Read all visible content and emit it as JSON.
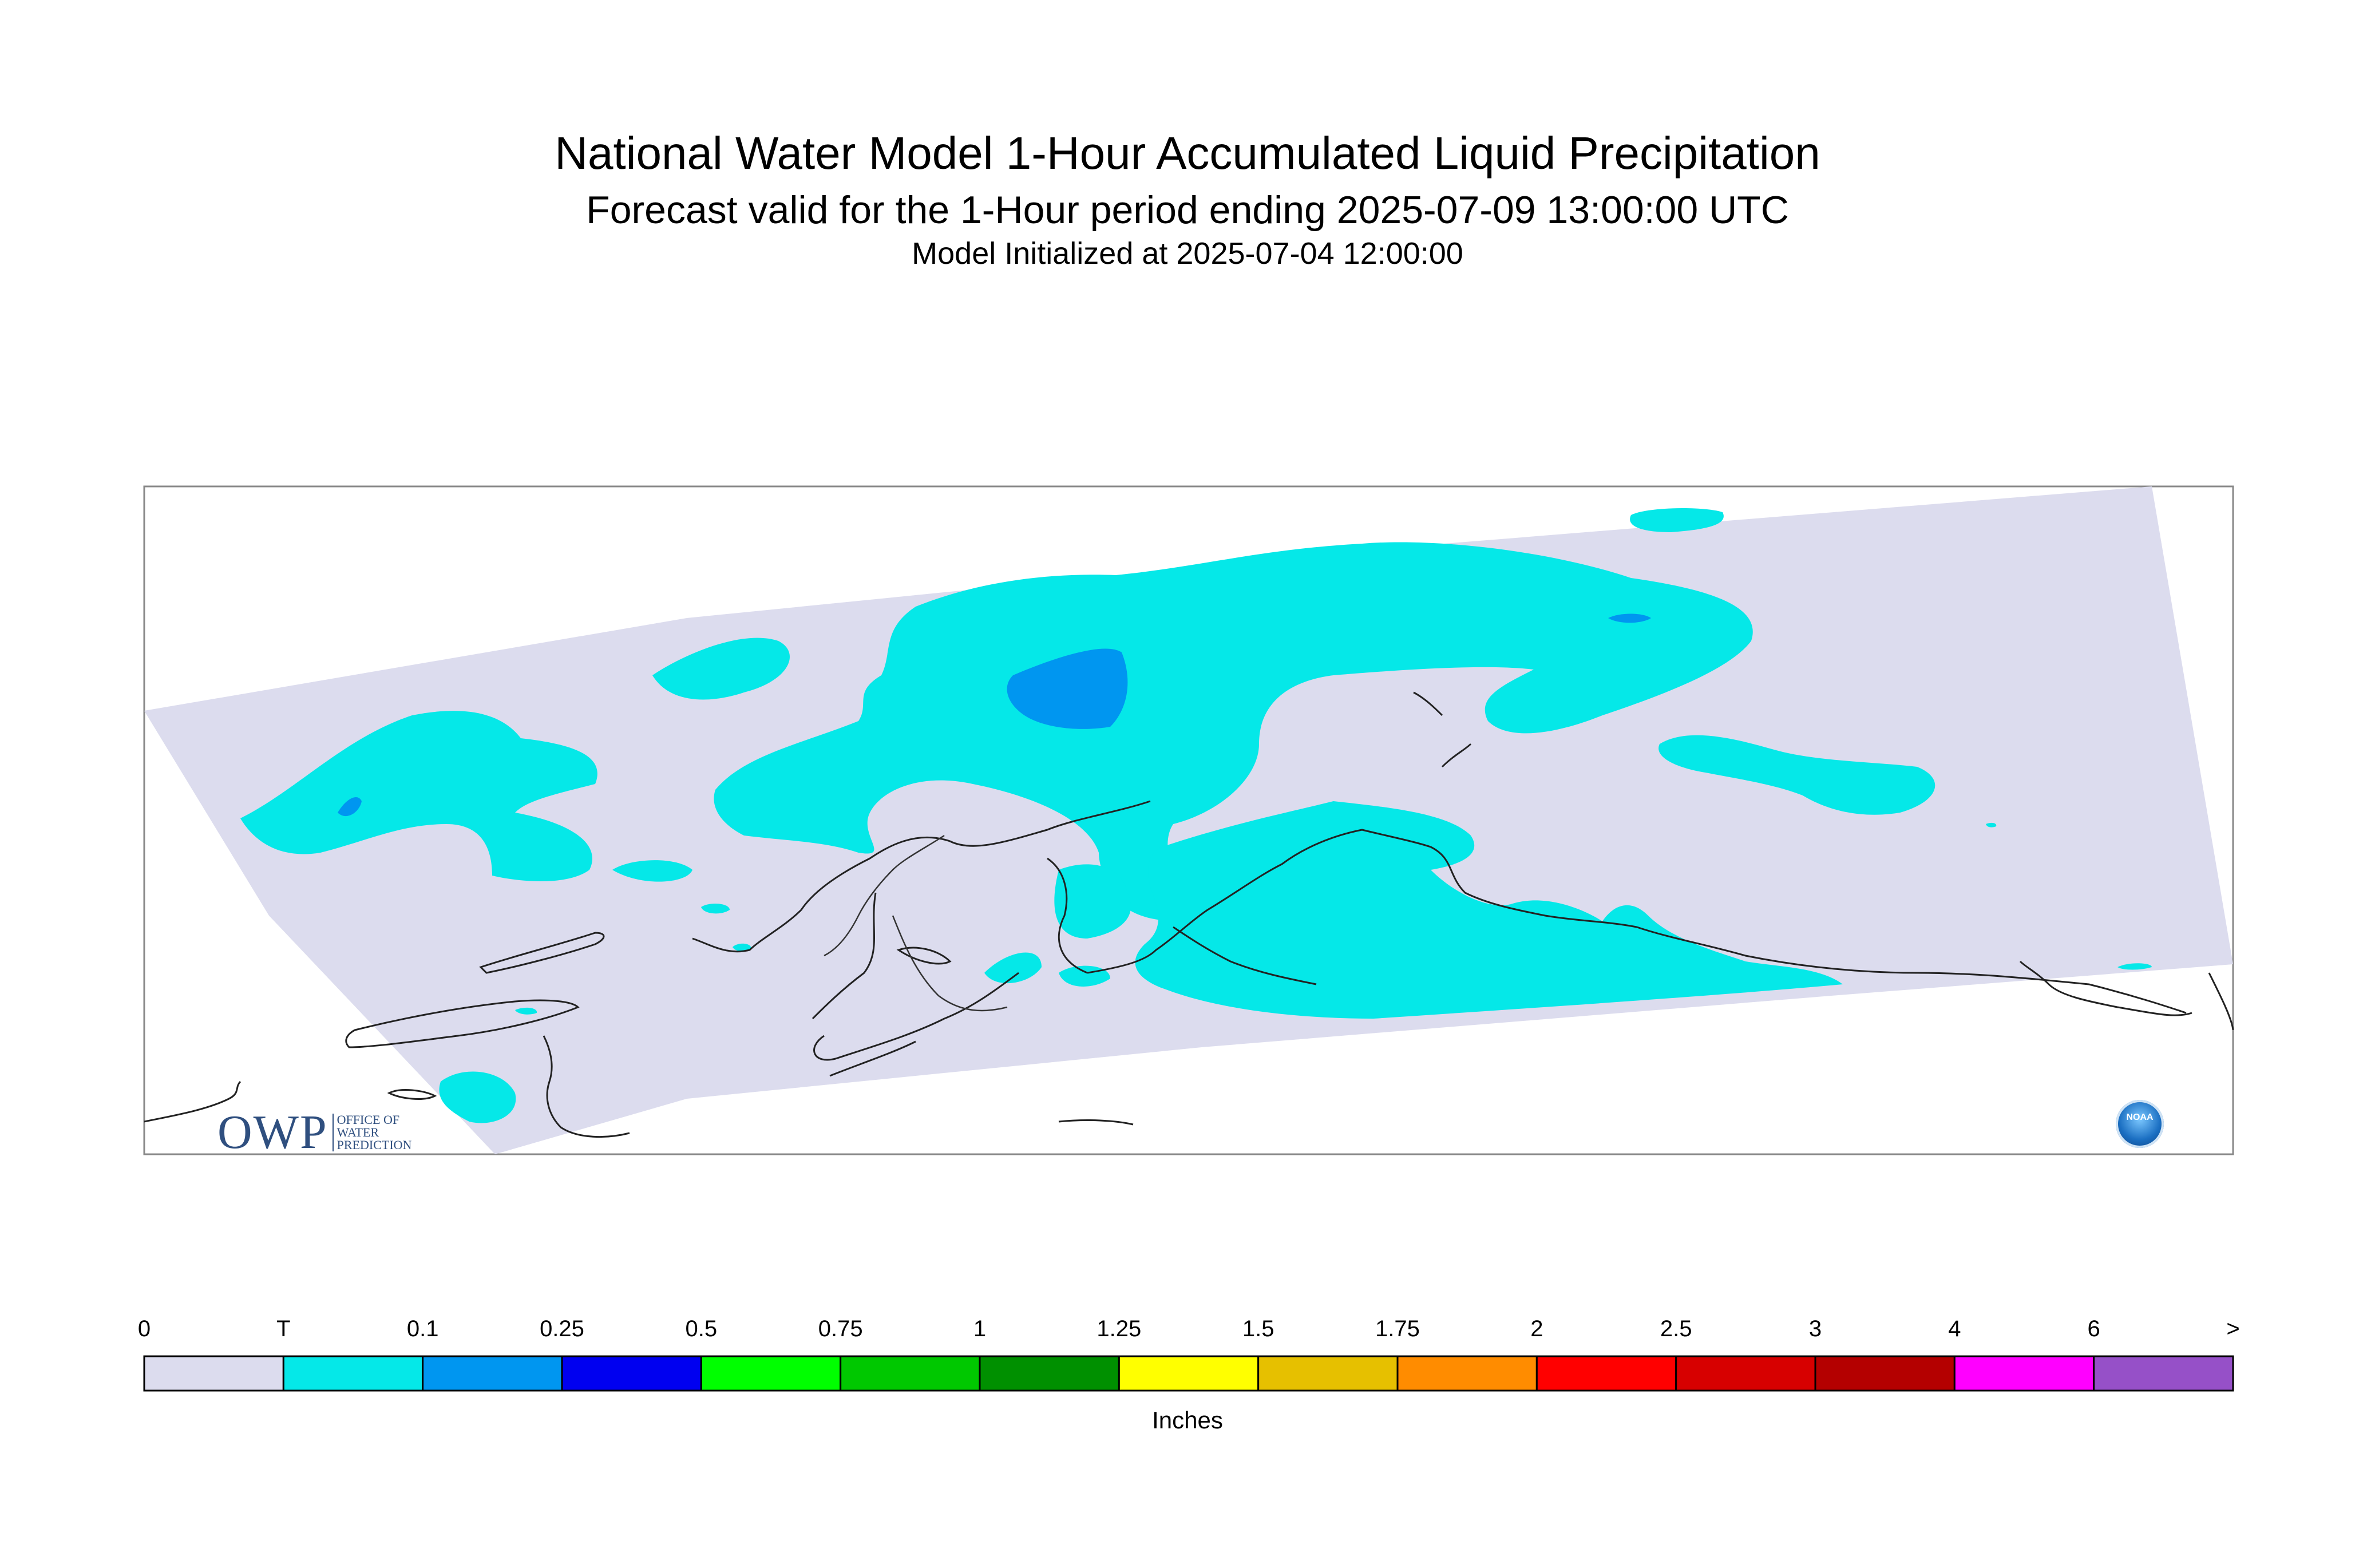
{
  "titles": {
    "line1": "National Water Model 1-Hour Accumulated Liquid Precipitation",
    "line2": "Forecast valid for the 1-Hour period ending 2025-07-09 13:00:00 UTC",
    "line3": "Model Initialized at 2025-07-04 12:00:00"
  },
  "map": {
    "region": "Alaska",
    "background_color": "#dcdcee",
    "precip_colors": {
      "trace": "#05e8e8",
      "light": "#0096f0"
    }
  },
  "colorbar": {
    "units": "Inches",
    "ticks": [
      "0",
      "T",
      "0.1",
      "0.25",
      "0.5",
      "0.75",
      "1",
      "1.25",
      "1.5",
      "1.75",
      "2",
      "2.5",
      "3",
      "4",
      "6",
      ">"
    ],
    "colors": [
      "#dcdcee",
      "#05e8e8",
      "#0096f0",
      "#0000f0",
      "#00ff00",
      "#00c800",
      "#009000",
      "#ffff00",
      "#e6c000",
      "#ff8c00",
      "#ff0000",
      "#d70000",
      "#b40000",
      "#ff00ff",
      "#9650c8"
    ]
  },
  "logos": {
    "owp_letters": "OWP",
    "owp_text": [
      "OFFICE OF",
      "WATER",
      "PREDICTION"
    ],
    "noaa_text": "NOAA"
  }
}
